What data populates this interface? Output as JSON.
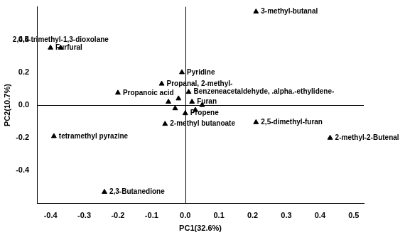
{
  "chart_data": {
    "type": "scatter",
    "x_label": "PC1(32.6%)",
    "y_label": "PC2(10.7%)",
    "x": [
      -0.4,
      -0.37,
      0.21,
      -0.01,
      -0.07,
      0.01,
      -0.2,
      0.02,
      0.21,
      0.43,
      -0.39,
      -0.06,
      0.0,
      -0.24,
      -0.05,
      -0.03,
      0.03,
      -0.02,
      0.05
    ],
    "values": [
      0.35,
      0.35,
      0.57,
      0.2,
      0.13,
      0.08,
      0.075,
      0.02,
      -0.105,
      -0.2,
      -0.19,
      -0.115,
      -0.05,
      -0.53,
      0.02,
      -0.02,
      -0.03,
      0.04,
      0.0
    ],
    "point_labels": [
      "Furfural",
      "2,4,5-trimethyl-1,3-dioxolane",
      "3-methyl-butanal",
      "Pyridine",
      "Propanal, 2-methyl-",
      "Benzeneacetaldehyde, .alpha.-ethylidene-",
      "Propanoic acid",
      "Furan",
      "2,5-dimethyl-furan",
      "2-methyl-2-Butenal",
      "tetramethyl pyrazine",
      "2-methyl butanoate",
      "Propene",
      "2,3-Butanedione",
      null,
      null,
      null,
      null,
      null
    ],
    "color": "#000000",
    "marker": "triangle",
    "xlim": [
      -0.44,
      0.53
    ],
    "ylim": [
      -0.6,
      0.6
    ],
    "xticks": [
      -0.4,
      -0.3,
      -0.2,
      -0.1,
      {
        "value": 0,
        "label": "0.0"
      },
      0.1,
      0.2,
      0.3,
      0.4,
      0.5
    ],
    "yticks": [
      -0.4,
      -0.2,
      {
        "value": 0,
        "label": "0.0"
      },
      0.2,
      0.4
    ],
    "grid": false
  }
}
